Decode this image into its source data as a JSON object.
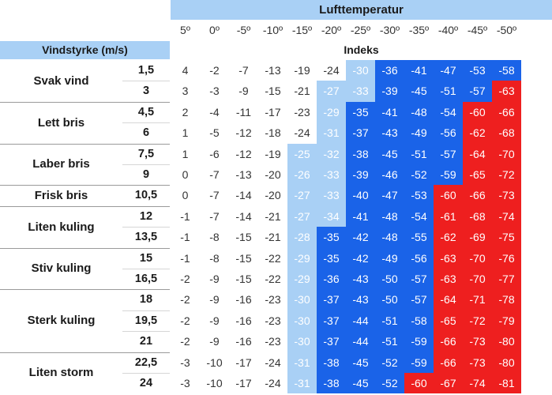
{
  "chart_data": {
    "type": "table",
    "title": "Lufttemperatur",
    "row_header": "Vindstyrke (m/s)",
    "index_label": "Indeks",
    "temperatures": [
      "5º",
      "0º",
      "-5º",
      "-10º",
      "-15º",
      "-20º",
      "-25º",
      "-30º",
      "-35º",
      "-40º",
      "-45º",
      "-50º"
    ],
    "groups": [
      {
        "name": "Svak vind",
        "rows": [
          {
            "speed": "1,5",
            "values": [
              "4",
              "-2",
              "-7",
              "-13",
              "-19",
              "-24",
              "-30",
              "-36",
              "-41",
              "-47",
              "-53",
              "-58"
            ]
          },
          {
            "speed": "3",
            "values": [
              "3",
              "-3",
              "-9",
              "-15",
              "-21",
              "-27",
              "-33",
              "-39",
              "-45",
              "-51",
              "-57",
              "-63"
            ]
          }
        ]
      },
      {
        "name": "Lett bris",
        "rows": [
          {
            "speed": "4,5",
            "values": [
              "2",
              "-4",
              "-11",
              "-17",
              "-23",
              "-29",
              "-35",
              "-41",
              "-48",
              "-54",
              "-60",
              "-66"
            ]
          },
          {
            "speed": "6",
            "values": [
              "1",
              "-5",
              "-12",
              "-18",
              "-24",
              "-31",
              "-37",
              "-43",
              "-49",
              "-56",
              "-62",
              "-68"
            ]
          }
        ]
      },
      {
        "name": "Laber bris",
        "rows": [
          {
            "speed": "7,5",
            "values": [
              "1",
              "-6",
              "-12",
              "-19",
              "-25",
              "-32",
              "-38",
              "-45",
              "-51",
              "-57",
              "-64",
              "-70"
            ]
          },
          {
            "speed": "9",
            "values": [
              "0",
              "-7",
              "-13",
              "-20",
              "-26",
              "-33",
              "-39",
              "-46",
              "-52",
              "-59",
              "-65",
              "-72"
            ]
          }
        ]
      },
      {
        "name": "Frisk bris",
        "rows": [
          {
            "speed": "10,5",
            "values": [
              "0",
              "-7",
              "-14",
              "-20",
              "-27",
              "-33",
              "-40",
              "-47",
              "-53",
              "-60",
              "-66",
              "-73"
            ]
          }
        ]
      },
      {
        "name": "Liten kuling",
        "rows": [
          {
            "speed": "12",
            "values": [
              "-1",
              "-7",
              "-14",
              "-21",
              "-27",
              "-34",
              "-41",
              "-48",
              "-54",
              "-61",
              "-68",
              "-74"
            ]
          },
          {
            "speed": "13,5",
            "values": [
              "-1",
              "-8",
              "-15",
              "-21",
              "-28",
              "-35",
              "-42",
              "-48",
              "-55",
              "-62",
              "-69",
              "-75"
            ]
          }
        ]
      },
      {
        "name": "Stiv kuling",
        "rows": [
          {
            "speed": "15",
            "values": [
              "-1",
              "-8",
              "-15",
              "-22",
              "-29",
              "-35",
              "-42",
              "-49",
              "-56",
              "-63",
              "-70",
              "-76"
            ]
          },
          {
            "speed": "16,5",
            "values": [
              "-2",
              "-9",
              "-15",
              "-22",
              "-29",
              "-36",
              "-43",
              "-50",
              "-57",
              "-63",
              "-70",
              "-77"
            ]
          }
        ]
      },
      {
        "name": "Sterk kuling",
        "rows": [
          {
            "speed": "18",
            "values": [
              "-2",
              "-9",
              "-16",
              "-23",
              "-30",
              "-37",
              "-43",
              "-50",
              "-57",
              "-64",
              "-71",
              "-78"
            ]
          },
          {
            "speed": "19,5",
            "values": [
              "-2",
              "-9",
              "-16",
              "-23",
              "-30",
              "-37",
              "-44",
              "-51",
              "-58",
              "-65",
              "-72",
              "-79"
            ]
          },
          {
            "speed": "21",
            "values": [
              "-2",
              "-9",
              "-16",
              "-23",
              "-30",
              "-37",
              "-44",
              "-51",
              "-59",
              "-66",
              "-73",
              "-80"
            ]
          }
        ]
      },
      {
        "name": "Liten storm",
        "rows": [
          {
            "speed": "22,5",
            "values": [
              "-3",
              "-10",
              "-17",
              "-24",
              "-31",
              "-38",
              "-45",
              "-52",
              "-59",
              "-66",
              "-73",
              "-80"
            ]
          },
          {
            "speed": "24",
            "values": [
              "-3",
              "-10",
              "-17",
              "-24",
              "-31",
              "-38",
              "-45",
              "-52",
              "-60",
              "-67",
              "-74",
              "-81"
            ]
          }
        ]
      }
    ],
    "color_scale": [
      {
        "from": -59,
        "to": -25,
        "note": "light / mid blue band"
      },
      {
        "from": -99,
        "to": -60,
        "note": "red"
      }
    ],
    "colors": {
      "header": "#a9d0f5",
      "light": "#a9d0f5",
      "blue": "#1a63e8",
      "red": "#ee1f1f"
    }
  }
}
